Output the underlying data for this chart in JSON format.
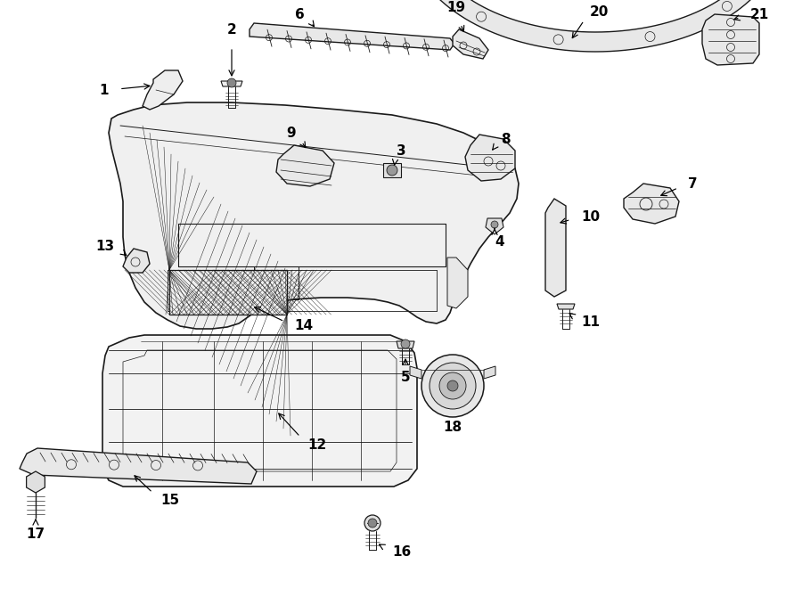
{
  "bg_color": "#ffffff",
  "line_color": "#1a1a1a",
  "fig_width": 9.0,
  "fig_height": 6.61,
  "dpi": 100,
  "xlim": [
    0,
    9.0
  ],
  "ylim": [
    0,
    6.61
  ]
}
